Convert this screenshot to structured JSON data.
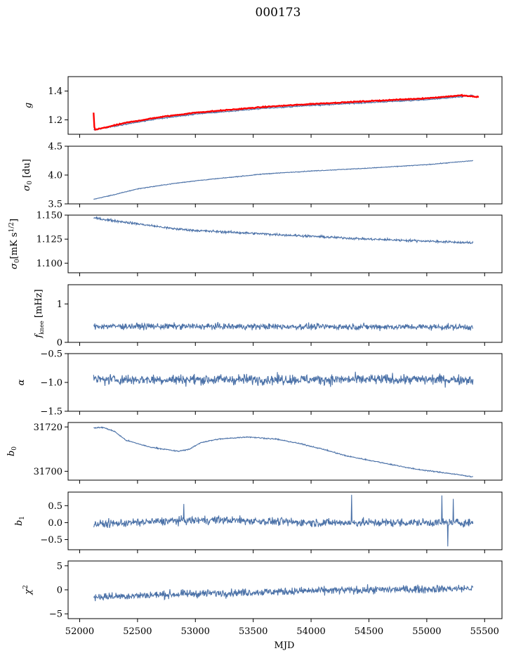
{
  "chart_data": {
    "type": "line",
    "title": "000173",
    "xlabel": "MJD",
    "xlim": [
      51900,
      55650
    ],
    "x_ticks": [
      52000,
      52500,
      53000,
      53500,
      54000,
      54500,
      55000,
      55500
    ],
    "x_tick_labels": [
      "52000",
      "52500",
      "53000",
      "53500",
      "54000",
      "54500",
      "55000",
      "55500"
    ],
    "x_start": 52120,
    "x_end": 55400,
    "grid": false,
    "series_color": "#4c72a8",
    "highlight_color": "#ff0000",
    "panels": [
      {
        "key": "g",
        "ylabel": "g",
        "ylim": [
          1.1,
          1.5
        ],
        "yticks": [
          1.2,
          1.4
        ],
        "ytick_labels": [
          "1.2",
          "1.4"
        ],
        "trend": [
          [
            52120,
            1.13
          ],
          [
            52400,
            1.17
          ],
          [
            52700,
            1.21
          ],
          [
            53000,
            1.24
          ],
          [
            53300,
            1.26
          ],
          [
            53600,
            1.28
          ],
          [
            54000,
            1.3
          ],
          [
            54500,
            1.32
          ],
          [
            55000,
            1.34
          ],
          [
            55300,
            1.36
          ],
          [
            55400,
            1.37
          ]
        ],
        "noise": 0.004,
        "red_series": {
          "trend": [
            [
              52120,
              1.25
            ],
            [
              52128,
              1.13
            ],
            [
              52400,
              1.18
            ],
            [
              52700,
              1.22
            ],
            [
              53000,
              1.25
            ],
            [
              53300,
              1.27
            ],
            [
              53600,
              1.29
            ],
            [
              54000,
              1.31
            ],
            [
              54500,
              1.33
            ],
            [
              55000,
              1.35
            ],
            [
              55300,
              1.37
            ],
            [
              55420,
              1.36
            ],
            [
              55450,
              1.36
            ]
          ]
        }
      },
      {
        "key": "sigma0_du",
        "ylabel": "σ0 [du]",
        "ylim": [
          3.5,
          4.5
        ],
        "yticks": [
          3.5,
          4.0,
          4.5
        ],
        "ytick_labels": [
          "3.5",
          "4.0",
          "4.5"
        ],
        "trend": [
          [
            52120,
            3.58
          ],
          [
            52300,
            3.66
          ],
          [
            52500,
            3.76
          ],
          [
            52800,
            3.85
          ],
          [
            53000,
            3.9
          ],
          [
            53300,
            3.96
          ],
          [
            53600,
            4.02
          ],
          [
            54000,
            4.07
          ],
          [
            54500,
            4.12
          ],
          [
            55000,
            4.18
          ],
          [
            55400,
            4.25
          ]
        ],
        "noise": 0.006
      },
      {
        "key": "sigma0_mk",
        "ylabel": "σ0[mK s1/2]",
        "ylim": [
          1.09,
          1.15
        ],
        "yticks": [
          1.1,
          1.125,
          1.15
        ],
        "ytick_labels": [
          "1.100",
          "1.125",
          "1.150"
        ],
        "trend": [
          [
            52120,
            1.147
          ],
          [
            52500,
            1.141
          ],
          [
            52800,
            1.136
          ],
          [
            53000,
            1.134
          ],
          [
            53500,
            1.131
          ],
          [
            54000,
            1.128
          ],
          [
            54500,
            1.125
          ],
          [
            55000,
            1.123
          ],
          [
            55400,
            1.121
          ]
        ],
        "noise": 0.0012
      },
      {
        "key": "fknee",
        "ylabel": "fknee [mHz]",
        "ylim": [
          0,
          1.5
        ],
        "yticks": [
          0,
          1
        ],
        "ytick_labels": [
          "0",
          "1"
        ],
        "trend": [
          [
            52120,
            0.42
          ],
          [
            55400,
            0.4
          ]
        ],
        "noise": 0.08
      },
      {
        "key": "alpha",
        "ylabel": "α",
        "ylim": [
          -1.5,
          -0.5
        ],
        "yticks": [
          -1.5,
          -1.0,
          -0.5
        ],
        "ytick_labels": [
          "−1.5",
          "−1.0",
          "−0.5"
        ],
        "trend": [
          [
            52120,
            -0.95
          ],
          [
            55400,
            -0.95
          ]
        ],
        "noise": 0.09
      },
      {
        "key": "b0",
        "ylabel": "b0",
        "ylim": [
          31696,
          31722
        ],
        "yticks": [
          31700,
          31720
        ],
        "ytick_labels": [
          "31700",
          "31720"
        ],
        "trend": [
          [
            52120,
            31719.5
          ],
          [
            52200,
            31719.8
          ],
          [
            52300,
            31718
          ],
          [
            52400,
            31714
          ],
          [
            52600,
            31711
          ],
          [
            52850,
            31709
          ],
          [
            52950,
            31710
          ],
          [
            53050,
            31713
          ],
          [
            53200,
            31714.5
          ],
          [
            53450,
            31715.5
          ],
          [
            53700,
            31714.5
          ],
          [
            53900,
            31712.5
          ],
          [
            54100,
            31710
          ],
          [
            54300,
            31707
          ],
          [
            54600,
            31704
          ],
          [
            54900,
            31701
          ],
          [
            55200,
            31699
          ],
          [
            55400,
            31697.5
          ]
        ],
        "noise": 0.25
      },
      {
        "key": "b1",
        "ylabel": "b1",
        "ylim": [
          -0.8,
          0.9
        ],
        "yticks": [
          -0.5,
          0.0,
          0.5
        ],
        "ytick_labels": [
          "−0.5",
          "0.0",
          "0.5"
        ],
        "trend": [
          [
            52120,
            -0.05
          ],
          [
            52800,
            0.05
          ],
          [
            53200,
            0.08
          ],
          [
            54000,
            0.0
          ],
          [
            55400,
            0.0
          ]
        ],
        "noise": 0.12,
        "spikes": [
          [
            54350,
            0.82
          ],
          [
            55130,
            0.8
          ],
          [
            55180,
            -0.7
          ],
          [
            55230,
            0.7
          ],
          [
            52900,
            0.55
          ]
        ]
      },
      {
        "key": "chi2",
        "ylabel": "χ2",
        "ylim": [
          -6,
          6
        ],
        "yticks": [
          -5,
          0,
          5
        ],
        "ytick_labels": [
          "−5",
          "0",
          "5"
        ],
        "trend": [
          [
            52120,
            -1.5
          ],
          [
            53000,
            -0.8
          ],
          [
            54000,
            -0.2
          ],
          [
            55400,
            0.3
          ]
        ],
        "noise": 0.8
      }
    ]
  }
}
